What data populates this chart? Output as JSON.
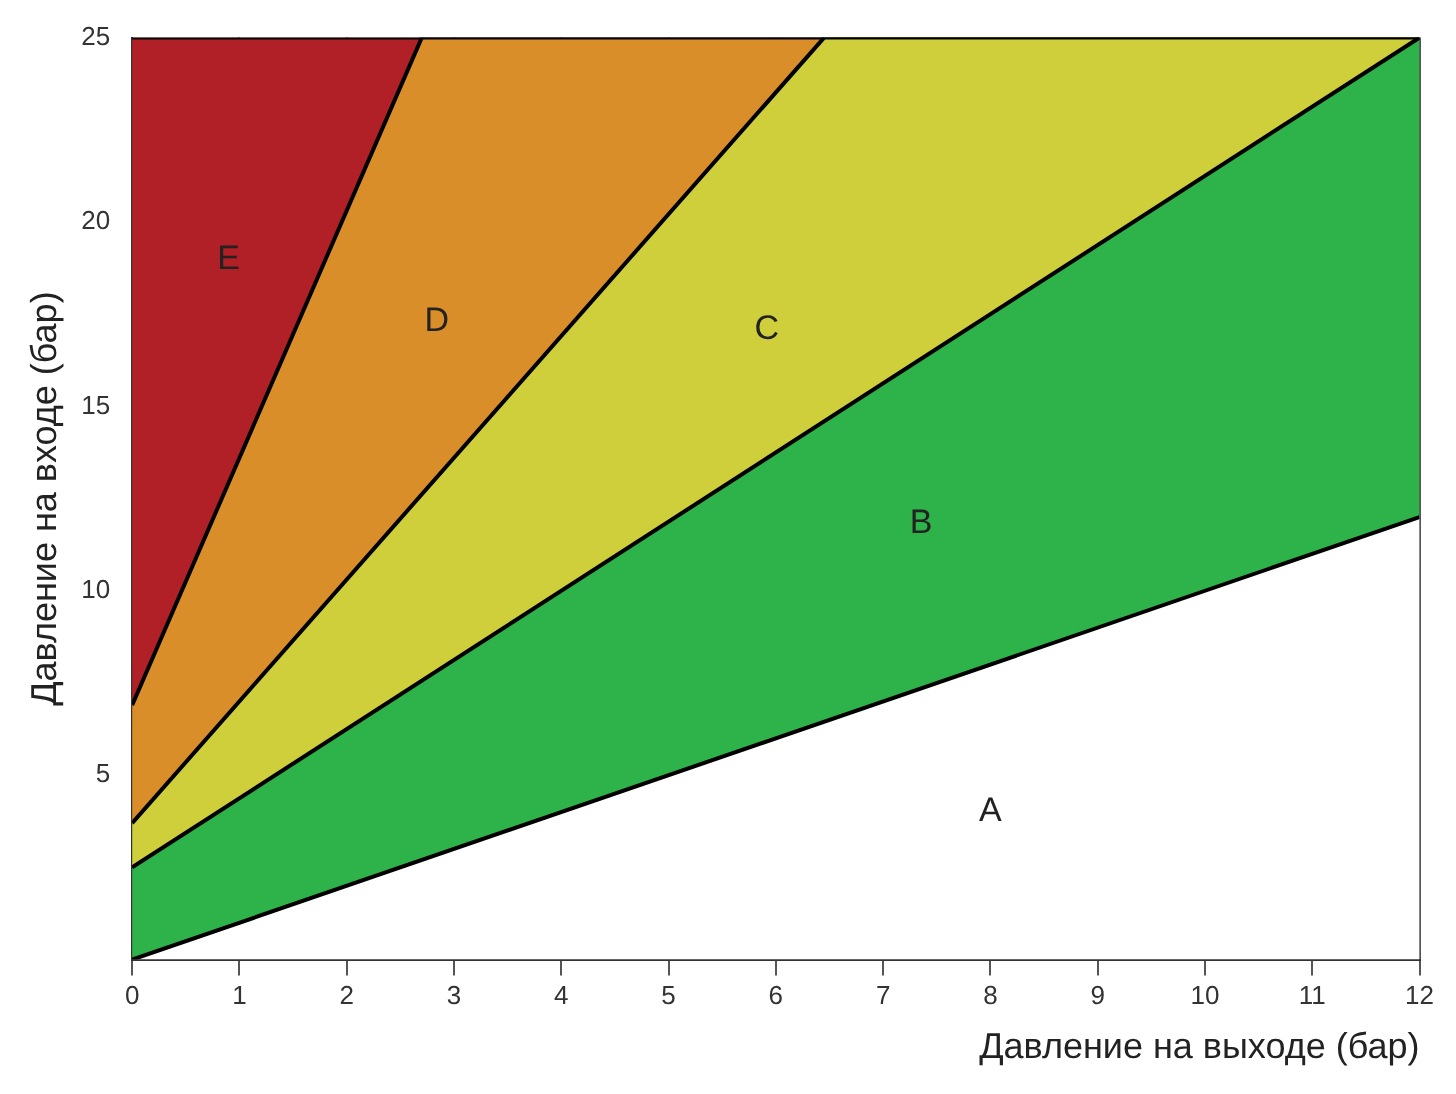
{
  "chart_data": {
    "type": "area",
    "xlabel": "Давление на выходе (бар)",
    "ylabel": "Давление на входе (бар)",
    "xlim": [
      0,
      12
    ],
    "ylim": [
      0,
      25
    ],
    "xticks": [
      0,
      1,
      2,
      3,
      4,
      5,
      6,
      7,
      8,
      9,
      10,
      11,
      12
    ],
    "yticks": [
      5,
      10,
      15,
      20,
      25
    ],
    "grid": "x",
    "legend": false,
    "series": [
      {
        "name": "A",
        "color": "#ffffff",
        "x": [
          0,
          12
        ],
        "values": [
          0,
          12
        ]
      },
      {
        "name": "B",
        "color": "#2eb34a",
        "x": [
          0,
          12
        ],
        "values": [
          2.5,
          25
        ]
      },
      {
        "name": "C",
        "color": "#cfcf3c",
        "x": [
          0,
          6.45,
          12
        ],
        "values": [
          3.7,
          25,
          25
        ]
      },
      {
        "name": "D",
        "color": "#d98e2a",
        "x": [
          0,
          2.7,
          12
        ],
        "values": [
          6.9,
          25,
          25
        ]
      },
      {
        "name": "E",
        "color": "#b02026",
        "x": [
          0,
          12
        ],
        "values": [
          25,
          25
        ]
      }
    ]
  }
}
